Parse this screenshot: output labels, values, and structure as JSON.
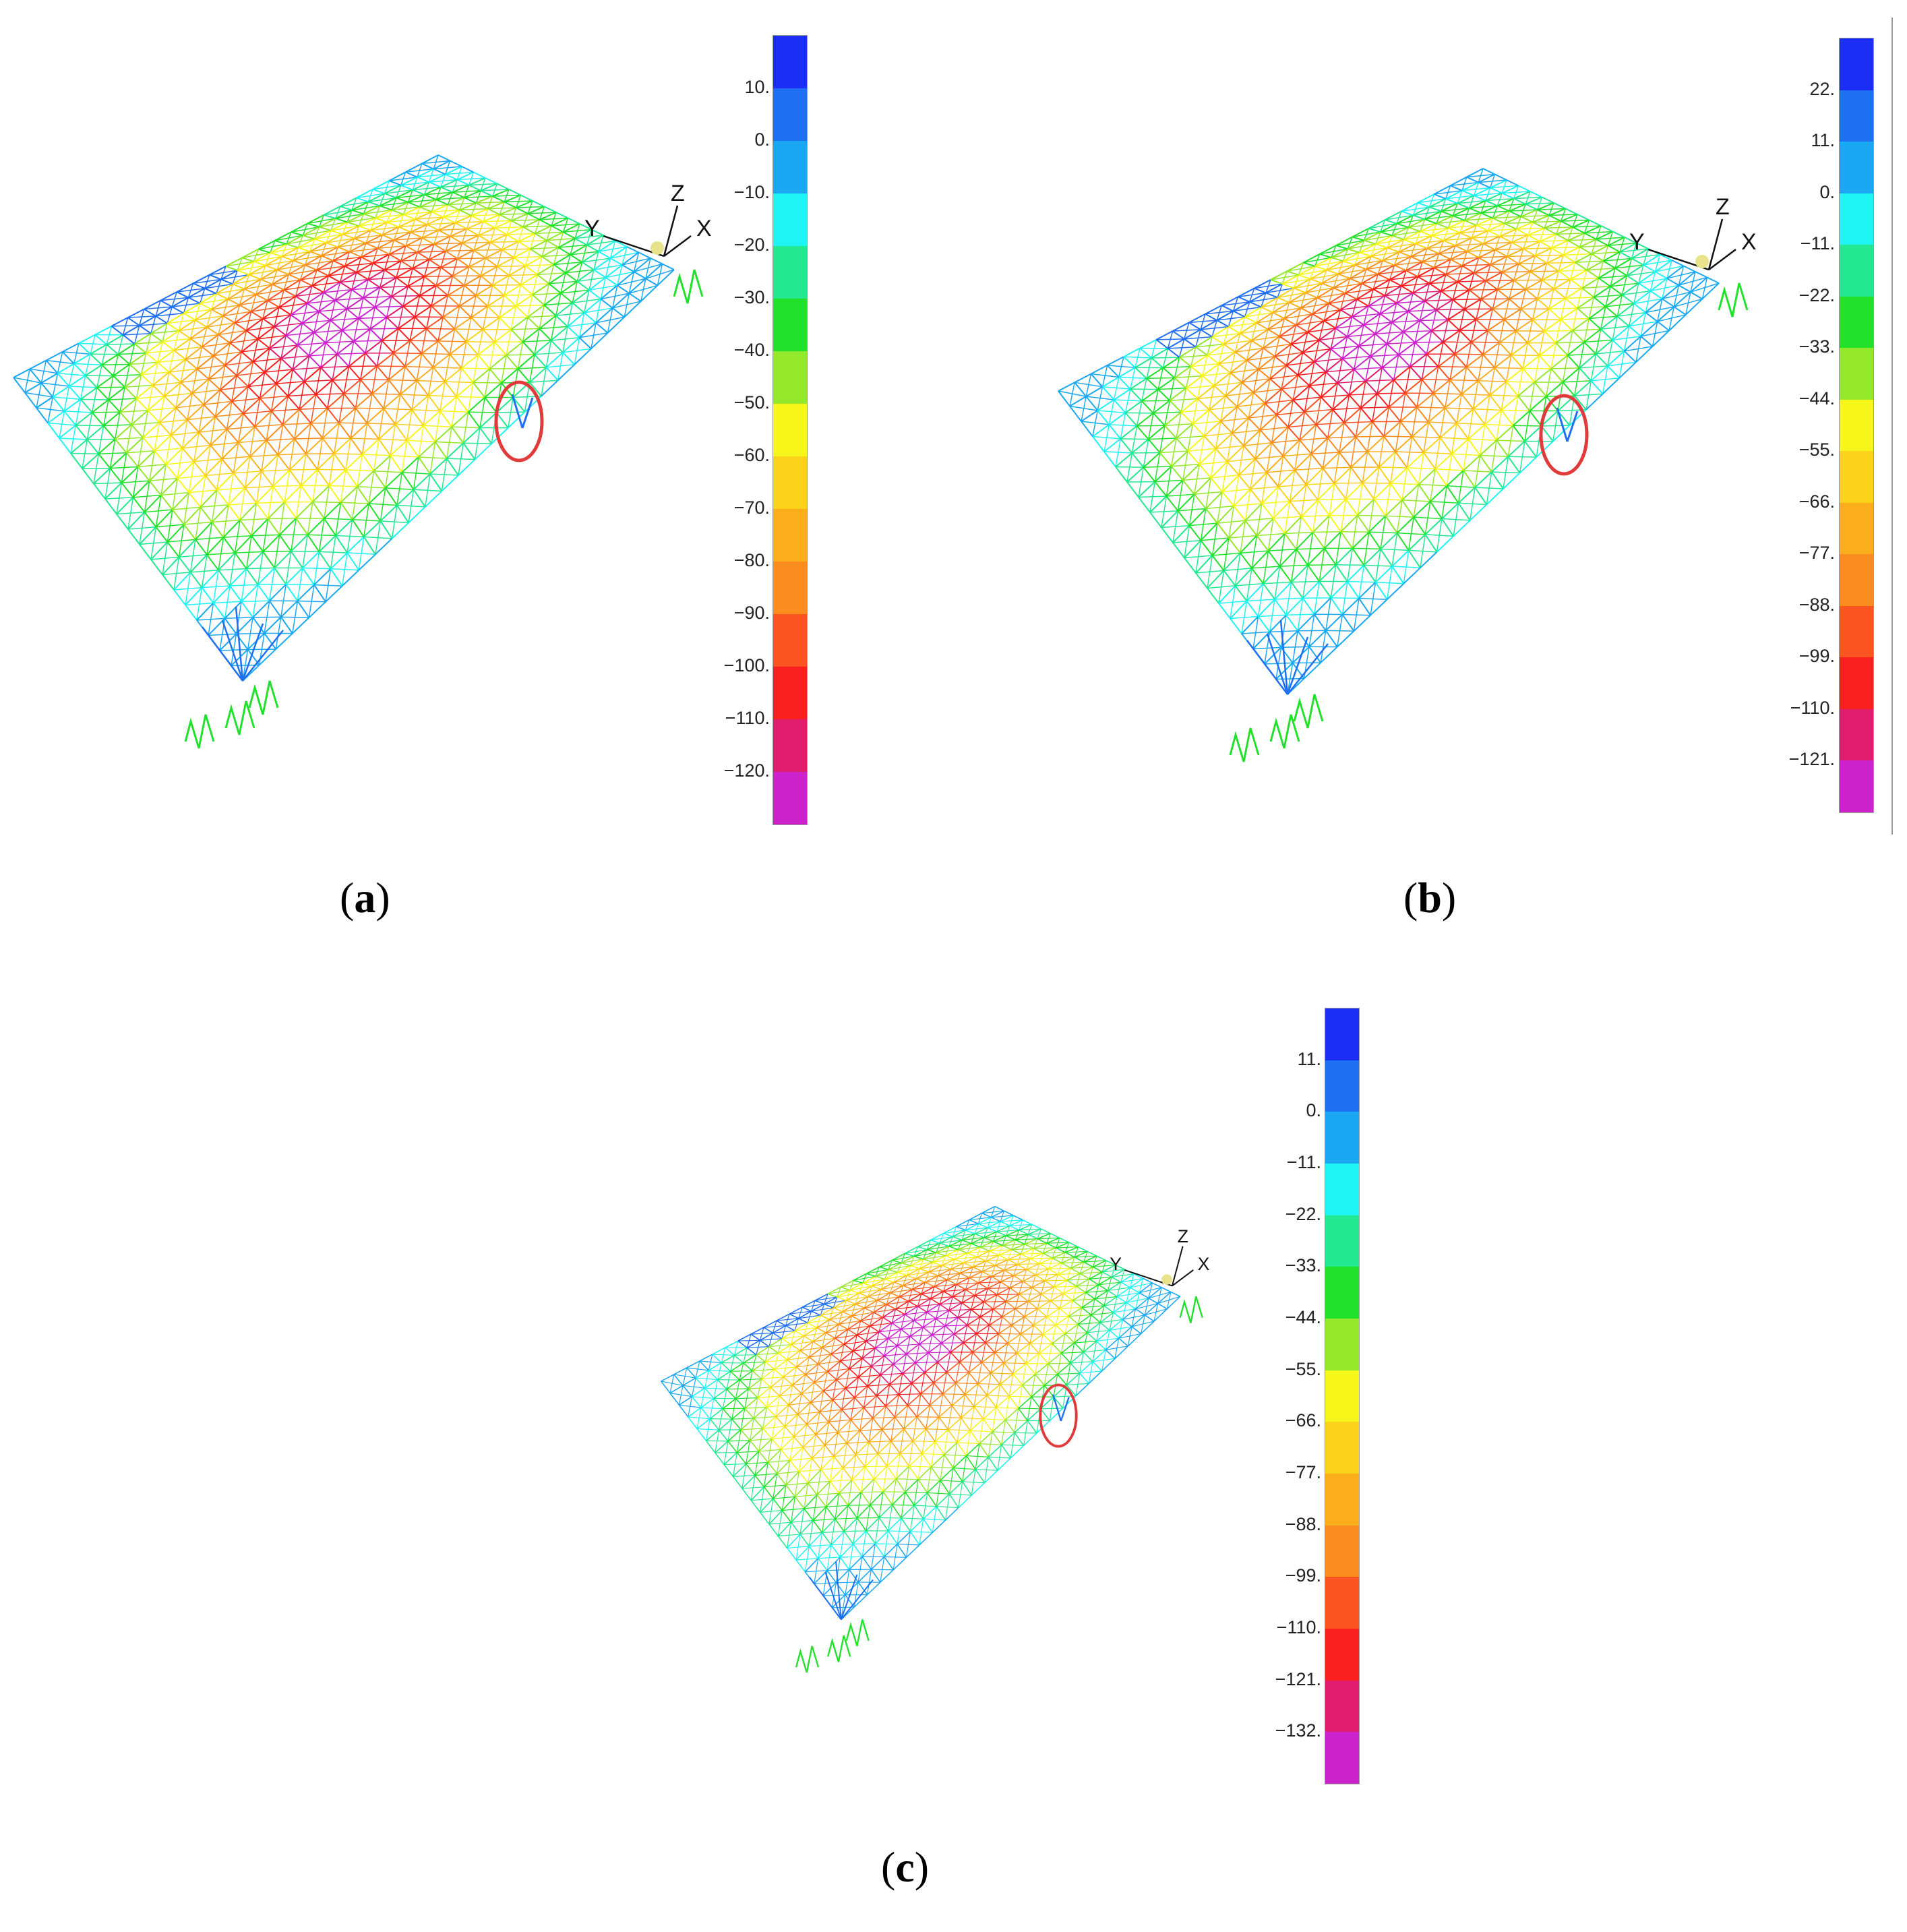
{
  "colors": {
    "scale": [
      "#1a2ef5",
      "#1e6ff2",
      "#1aa8f3",
      "#1ff4f4",
      "#22e98f",
      "#22e12b",
      "#93e829",
      "#f6f61a",
      "#fbd31b",
      "#fbae1c",
      "#fb8c1e",
      "#fb5420",
      "#fa1f1f",
      "#e01c6c",
      "#cc22cc"
    ],
    "highlight_circle": "#e13a3a",
    "axes": "#111111"
  },
  "panels": [
    {
      "id": "a",
      "caption_open": "(",
      "caption_letter": "a",
      "caption_close": ")",
      "legend_ticks": [
        "10.",
        "0.",
        "−10.",
        "−20.",
        "−30.",
        "−40.",
        "−50.",
        "−60.",
        "−70.",
        "−80.",
        "−90.",
        "−100.",
        "−110.",
        "−120."
      ],
      "axes": {
        "x": "X",
        "y": "Y",
        "z": "Z"
      }
    },
    {
      "id": "b",
      "caption_open": "(",
      "caption_letter": "b",
      "caption_close": ")",
      "legend_ticks": [
        "22.",
        "11.",
        "0.",
        "−11.",
        "−22.",
        "−33.",
        "−44.",
        "−55.",
        "−66.",
        "−77.",
        "−88.",
        "−99.",
        "−110.",
        "−121."
      ],
      "axes": {
        "x": "X",
        "y": "Y",
        "z": "Z"
      }
    },
    {
      "id": "c",
      "caption_open": "(",
      "caption_letter": "c",
      "caption_close": ")",
      "legend_ticks": [
        "11.",
        "0.",
        "−11.",
        "−22.",
        "−33.",
        "−44.",
        "−55.",
        "−66.",
        "−77.",
        "−88.",
        "−99.",
        "−110.",
        "−121.",
        "−132."
      ],
      "axes": {
        "x": "X",
        "y": "Y",
        "z": "Z"
      }
    }
  ]
}
